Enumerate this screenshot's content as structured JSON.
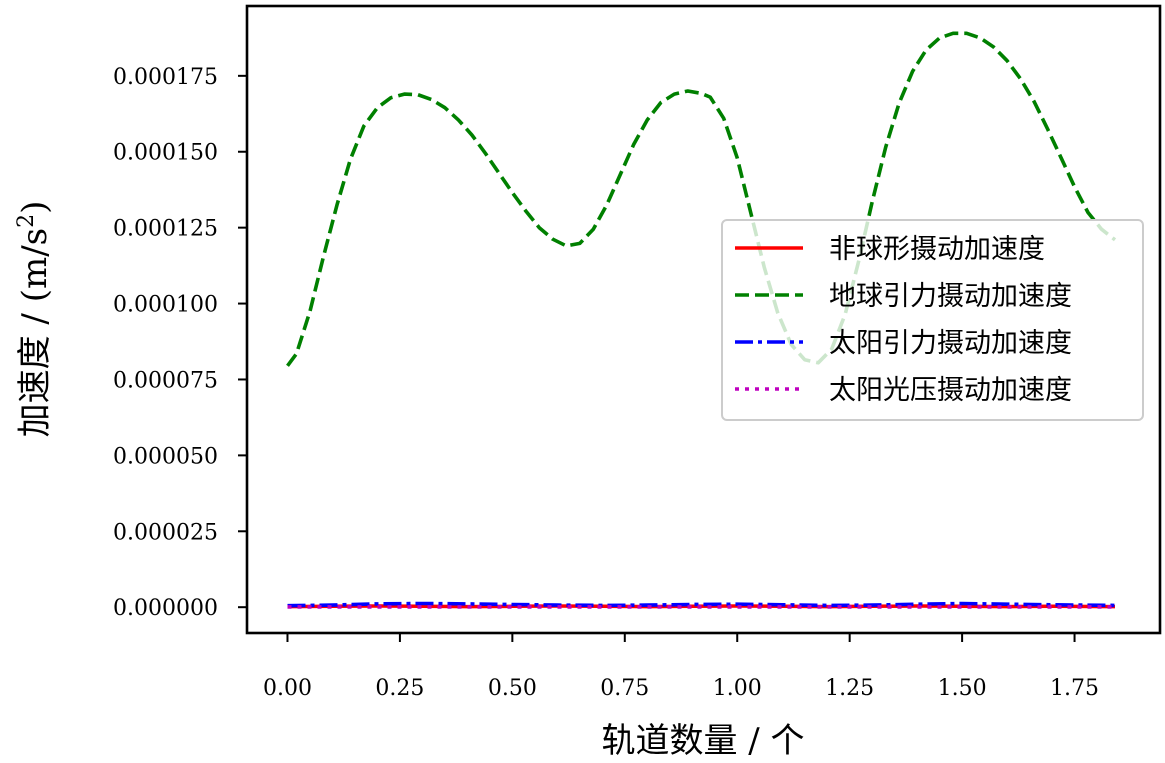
{
  "chart_data": {
    "type": "line",
    "title": "",
    "xlabel": "轨道数量 / 个",
    "ylabel": "加速度 / (m/s",
    "ylabel_sup": "2",
    "ylabel_end": ")",
    "xlim": [
      -0.09,
      1.94
    ],
    "ylim": [
      -8.5e-06,
      0.000198
    ],
    "xticks": [
      0.0,
      0.25,
      0.5,
      0.75,
      1.0,
      1.25,
      1.5,
      1.75
    ],
    "xtick_labels": [
      "0.00",
      "0.25",
      "0.50",
      "0.75",
      "1.00",
      "1.25",
      "1.50",
      "1.75"
    ],
    "yticks": [
      0.0,
      2.5e-05,
      5e-05,
      7.5e-05,
      0.0001,
      0.000125,
      0.00015,
      0.000175
    ],
    "ytick_labels": [
      "0.000000",
      "0.000025",
      "0.000050",
      "0.000075",
      "0.000100",
      "0.000125",
      "0.000150",
      "0.000175"
    ],
    "grid": false,
    "legend_position": "center-right",
    "series": [
      {
        "name": "非球形摄动加速度",
        "color": "#ff0000",
        "style": "solid",
        "x": [
          0.0,
          0.1,
          0.2,
          0.3,
          0.4,
          0.5,
          0.6,
          0.7,
          0.8,
          0.9,
          1.0,
          1.1,
          1.2,
          1.3,
          1.4,
          1.5,
          1.6,
          1.7,
          1.84
        ],
        "y": [
          2e-07,
          3e-07,
          4e-07,
          3e-07,
          2e-07,
          3e-07,
          4e-07,
          3e-07,
          2e-07,
          3e-07,
          4e-07,
          3e-07,
          2e-07,
          3e-07,
          4e-07,
          3e-07,
          2e-07,
          3e-07,
          2e-07
        ]
      },
      {
        "name": "地球引力摄动加速度",
        "color": "#008000",
        "style": "dashed",
        "x": [
          0.0,
          0.02,
          0.05,
          0.08,
          0.11,
          0.14,
          0.17,
          0.2,
          0.23,
          0.26,
          0.29,
          0.32,
          0.35,
          0.38,
          0.41,
          0.44,
          0.47,
          0.5,
          0.53,
          0.56,
          0.59,
          0.62,
          0.65,
          0.68,
          0.71,
          0.74,
          0.77,
          0.8,
          0.83,
          0.86,
          0.89,
          0.92,
          0.94,
          0.97,
          1.0,
          1.03,
          1.06,
          1.09,
          1.12,
          1.15,
          1.18,
          1.21,
          1.24,
          1.27,
          1.3,
          1.33,
          1.36,
          1.39,
          1.42,
          1.45,
          1.48,
          1.51,
          1.54,
          1.57,
          1.6,
          1.63,
          1.66,
          1.69,
          1.72,
          1.75,
          1.78,
          1.81,
          1.84
        ],
        "y": [
          7.95e-05,
          8.35e-05,
          9.75e-05,
          0.0001155,
          0.0001325,
          0.0001475,
          0.0001585,
          0.0001645,
          0.0001678,
          0.000169,
          0.0001688,
          0.0001672,
          0.0001645,
          0.0001605,
          0.0001555,
          0.0001495,
          0.000143,
          0.0001365,
          0.0001305,
          0.000125,
          0.0001212,
          0.000119,
          0.0001198,
          0.0001245,
          0.0001325,
          0.0001425,
          0.0001525,
          0.0001605,
          0.0001662,
          0.000169,
          0.00017,
          0.0001692,
          0.000168,
          0.000161,
          0.000148,
          0.00013,
          0.000112,
          9.7e-05,
          8.65e-05,
          8.15e-05,
          8.05e-05,
          8.5e-05,
          9.65e-05,
          0.000114,
          0.0001335,
          0.0001515,
          0.000166,
          0.0001765,
          0.0001835,
          0.0001875,
          0.000189,
          0.000189,
          0.0001875,
          0.0001845,
          0.00018,
          0.000174,
          0.0001665,
          0.0001575,
          0.000148,
          0.0001385,
          0.00013,
          0.0001245,
          0.000121
        ]
      },
      {
        "name": "太阳引力摄动加速度",
        "color": "#0000ff",
        "style": "dashdot",
        "x": [
          0.0,
          0.1,
          0.2,
          0.3,
          0.4,
          0.5,
          0.6,
          0.7,
          0.8,
          0.9,
          1.0,
          1.1,
          1.2,
          1.3,
          1.4,
          1.5,
          1.6,
          1.7,
          1.84
        ],
        "y": [
          5e-07,
          7e-07,
          1.1e-06,
          1.2e-06,
          1.1e-06,
          9e-07,
          7e-07,
          6e-07,
          7e-07,
          9e-07,
          1e-06,
          8e-07,
          6e-07,
          7e-07,
          1e-06,
          1.2e-06,
          1e-06,
          8e-07,
          6e-07
        ]
      },
      {
        "name": "太阳光压摄动加速度",
        "color": "#bf00bf",
        "style": "dotted",
        "x": [
          0.0,
          0.2,
          0.4,
          0.6,
          0.8,
          1.0,
          1.2,
          1.4,
          1.6,
          1.84
        ],
        "y": [
          1e-07,
          1e-07,
          1e-07,
          1e-07,
          1e-07,
          1e-07,
          1e-07,
          1e-07,
          1e-07,
          1e-07
        ]
      }
    ]
  }
}
